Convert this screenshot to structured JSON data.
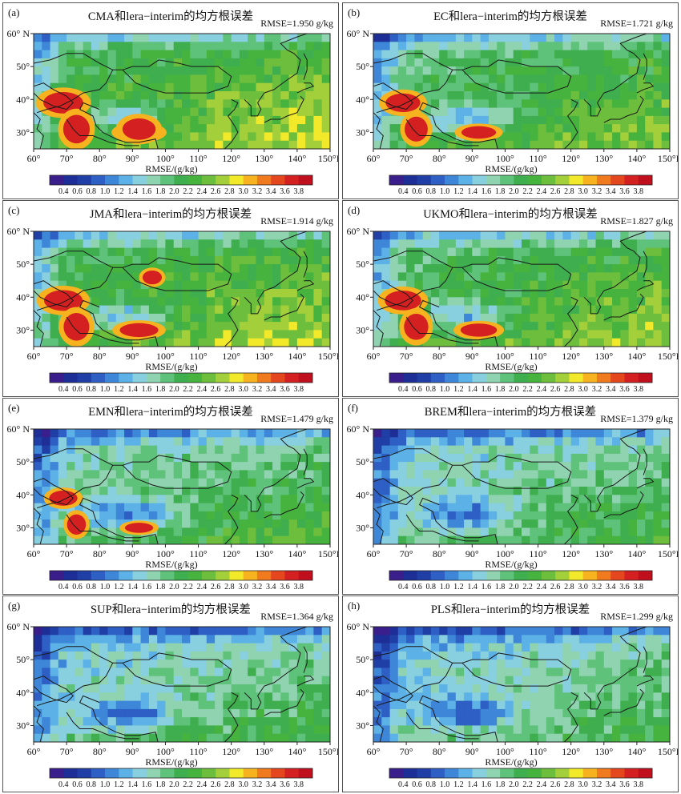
{
  "panels": [
    {
      "label": "(a)",
      "title": "CMA和lera−interim的均方根误差",
      "rmse": "RMSE=1.950 g/kg",
      "level": 0.55
    },
    {
      "label": "(b)",
      "title": "EC和lera−interim的均方根误差",
      "rmse": "RMSE=1.721 g/kg",
      "level": 0.35
    },
    {
      "label": "(c)",
      "title": "JMA和lera−interim的均方根误差",
      "rmse": "RMSE=1.914 g/kg",
      "level": 0.5
    },
    {
      "label": "(d)",
      "title": "UKMO和lera−interim的均方根误差",
      "rmse": "RMSE=1.827 g/kg",
      "level": 0.42
    },
    {
      "label": "(e)",
      "title": "EMN和lera−interim的均方根误差",
      "rmse": "RMSE=1.479 g/kg",
      "level": 0.1
    },
    {
      "label": "(f)",
      "title": "BREM和lera−interim的均方根误差",
      "rmse": "RMSE=1.379 g/kg",
      "level": 0.0
    },
    {
      "label": "(g)",
      "title": "SUP和lera−interim的均方根误差",
      "rmse": "RMSE=1.364 g/kg",
      "level": -0.05
    },
    {
      "label": "(h)",
      "title": "PLS和lera−interim的均方根误差",
      "rmse": "RMSE=1.299 g/kg",
      "level": -0.1
    }
  ],
  "xticks": [
    "60°",
    "70°",
    "80°",
    "90°",
    "100°",
    "110°",
    "120°",
    "130°",
    "140°",
    "150°E"
  ],
  "yticks": [
    "60° N",
    "50°",
    "40°",
    "30°"
  ],
  "xlabel": "RMSE/(g/kg)",
  "colorbar": {
    "labels": [
      "0.4",
      "0.6",
      "0.8",
      "1.0",
      "1.2",
      "1.4",
      "1.6",
      "1.8",
      "2.0",
      "2.2",
      "2.4",
      "2.6",
      "2.8",
      "3.0",
      "3.2",
      "3.4",
      "3.6",
      "3.8"
    ],
    "colors": [
      "#3a1e8c",
      "#1d2f96",
      "#1f3fa6",
      "#2e5fc4",
      "#3e86d8",
      "#5cb1e6",
      "#88cfe0",
      "#8fd3b0",
      "#5fc27a",
      "#3eae4e",
      "#47b33f",
      "#6cbe3c",
      "#a2cf3a",
      "#f2e92a",
      "#f7b21f",
      "#f07a1e",
      "#e4461e",
      "#d42020",
      "#c0101e"
    ]
  },
  "map_colors": {
    "coast": "#1a1a1a",
    "frame": "#222222"
  }
}
